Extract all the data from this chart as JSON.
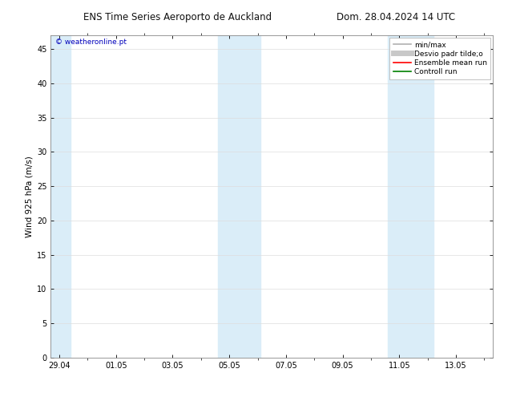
{
  "title_left": "ENS Time Series Aeroporto de Auckland",
  "title_right": "Dom. 28.04.2024 14 UTC",
  "ylabel": "Wind 925 hPa (m/s)",
  "watermark": "© weatheronline.pt",
  "x_tick_labels": [
    "29.04",
    "01.05",
    "03.05",
    "05.05",
    "07.05",
    "09.05",
    "11.05",
    "13.05"
  ],
  "x_tick_positions": [
    0,
    2,
    4,
    6,
    8,
    10,
    12,
    14
  ],
  "ylim": [
    0,
    47
  ],
  "xlim": [
    -0.3,
    15.3
  ],
  "yticks": [
    0,
    5,
    10,
    15,
    20,
    25,
    30,
    35,
    40,
    45
  ],
  "shaded_regions": [
    {
      "x_start": -0.3,
      "x_end": 0.4,
      "color": "#daedf8"
    },
    {
      "x_start": 5.6,
      "x_end": 7.1,
      "color": "#daedf8"
    },
    {
      "x_start": 11.6,
      "x_end": 13.2,
      "color": "#daedf8"
    }
  ],
  "legend_entries": [
    {
      "label": "min/max",
      "color": "#b0b0b0",
      "lw": 1.2,
      "linestyle": "-"
    },
    {
      "label": "Desvio padr tilde;o",
      "color": "#c8c8c8",
      "lw": 5,
      "linestyle": "-"
    },
    {
      "label": "Ensemble mean run",
      "color": "#ff0000",
      "lw": 1.2,
      "linestyle": "-"
    },
    {
      "label": "Controll run",
      "color": "#008000",
      "lw": 1.2,
      "linestyle": "-"
    }
  ],
  "background_color": "#ffffff",
  "plot_bg_color": "#ffffff",
  "grid_color": "#dddddd",
  "title_fontsize": 8.5,
  "tick_fontsize": 7,
  "ylabel_fontsize": 7.5,
  "watermark_color": "#0000bb",
  "watermark_fontsize": 6.5,
  "legend_fontsize": 6.5
}
